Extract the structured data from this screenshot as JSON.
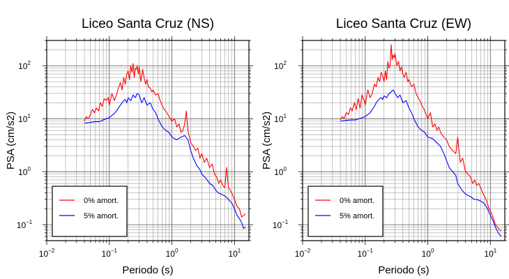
{
  "chart_data": [
    {
      "type": "line",
      "title": "Liceo Santa Cruz (NS)",
      "xlabel": "Periodo (s)",
      "ylabel": "PSA (cm/s2)",
      "xscale": "log",
      "yscale": "log",
      "xlim": [
        0.01,
        17
      ],
      "ylim": [
        0.05,
        300
      ],
      "xticks": [
        {
          "base": "10",
          "exp": "−2"
        },
        {
          "base": "10",
          "exp": "−1"
        },
        {
          "base": "10",
          "exp": "0"
        },
        {
          "base": "10",
          "exp": "1"
        }
      ],
      "yticks": [
        {
          "base": "10",
          "exp": "−1"
        },
        {
          "base": "10",
          "exp": "0"
        },
        {
          "base": "10",
          "exp": "1"
        },
        {
          "base": "10",
          "exp": "2"
        }
      ],
      "grid": true,
      "legend_position": "bottom-left",
      "series": [
        {
          "name": "0% amort.",
          "color": "#ff0000",
          "x": [
            0.04,
            0.043,
            0.046,
            0.05,
            0.054,
            0.058,
            0.062,
            0.067,
            0.072,
            0.077,
            0.083,
            0.089,
            0.096,
            0.1,
            0.11,
            0.12,
            0.13,
            0.14,
            0.15,
            0.16,
            0.17,
            0.18,
            0.19,
            0.2,
            0.21,
            0.22,
            0.23,
            0.24,
            0.25,
            0.26,
            0.27,
            0.28,
            0.29,
            0.3,
            0.32,
            0.34,
            0.36,
            0.38,
            0.4,
            0.42,
            0.45,
            0.48,
            0.5,
            0.55,
            0.6,
            0.65,
            0.7,
            0.75,
            0.8,
            0.9,
            1.0,
            1.1,
            1.2,
            1.3,
            1.4,
            1.5,
            1.6,
            1.7,
            1.8,
            2.0,
            2.2,
            2.4,
            2.6,
            2.8,
            3.0,
            3.3,
            3.6,
            4.0,
            4.4,
            4.8,
            5.2,
            5.6,
            6.0,
            6.5,
            7.0,
            7.5,
            8.0,
            8.5,
            9.0,
            9.5,
            10.0,
            11.0,
            12.0,
            13.0,
            14.0,
            15.0
          ],
          "y": [
            9.0,
            11,
            10,
            12,
            15,
            13,
            16,
            14,
            20,
            17,
            24,
            22,
            25,
            18,
            30,
            22,
            28,
            38,
            48,
            35,
            60,
            45,
            70,
            80,
            55,
            100,
            75,
            110,
            60,
            90,
            85,
            100,
            70,
            95,
            50,
            85,
            60,
            45,
            55,
            40,
            38,
            32,
            35,
            28,
            30,
            22,
            18,
            15,
            14,
            11,
            9,
            10,
            7,
            8,
            5.5,
            6,
            8,
            14,
            6,
            3.5,
            3.0,
            2.5,
            2.8,
            1.8,
            2.2,
            1.5,
            1.8,
            1.2,
            1.4,
            0.9,
            0.8,
            0.6,
            0.7,
            0.55,
            0.5,
            1.2,
            0.5,
            0.45,
            0.4,
            0.35,
            0.3,
            0.22,
            0.2,
            0.14,
            0.15,
            0.16
          ]
        },
        {
          "name": "5% amort.",
          "color": "#0000ff",
          "x": [
            0.04,
            0.05,
            0.06,
            0.07,
            0.08,
            0.09,
            0.1,
            0.11,
            0.12,
            0.13,
            0.14,
            0.15,
            0.16,
            0.17,
            0.18,
            0.19,
            0.2,
            0.22,
            0.24,
            0.26,
            0.28,
            0.3,
            0.33,
            0.36,
            0.4,
            0.45,
            0.5,
            0.55,
            0.6,
            0.7,
            0.8,
            0.9,
            1.0,
            1.1,
            1.2,
            1.4,
            1.6,
            1.8,
            2.0,
            2.2,
            2.5,
            2.8,
            3.0,
            3.5,
            4.0,
            4.5,
            5.0,
            5.5,
            6.0,
            7.0,
            8.0,
            9.0,
            10.0,
            11.0,
            12.0,
            13.0,
            14.0,
            15.0
          ],
          "y": [
            8.3,
            8.5,
            8.8,
            8.8,
            9.5,
            10.0,
            10.5,
            11.5,
            12.5,
            14,
            16,
            18,
            20,
            22,
            23,
            20,
            25,
            22,
            28,
            25,
            30,
            28,
            20,
            25,
            18,
            20,
            15,
            13,
            10,
            7,
            6,
            5.5,
            4.5,
            4.2,
            4.0,
            4.5,
            4.8,
            4.0,
            2.5,
            1.8,
            1.3,
            1.1,
            0.9,
            0.75,
            0.6,
            0.55,
            0.45,
            0.4,
            0.38,
            0.35,
            0.3,
            0.26,
            0.2,
            0.15,
            0.13,
            0.11,
            0.085,
            0.09
          ]
        }
      ]
    },
    {
      "type": "line",
      "title": "Liceo Santa Cruz (EW)",
      "xlabel": "Periodo (s)",
      "ylabel": "PSA (cm/s2)",
      "xscale": "log",
      "yscale": "log",
      "xlim": [
        0.01,
        17
      ],
      "ylim": [
        0.05,
        300
      ],
      "xticks": [
        {
          "base": "10",
          "exp": "−2"
        },
        {
          "base": "10",
          "exp": "−1"
        },
        {
          "base": "10",
          "exp": "0"
        },
        {
          "base": "10",
          "exp": "1"
        }
      ],
      "yticks": [
        {
          "base": "10",
          "exp": "−1"
        },
        {
          "base": "10",
          "exp": "0"
        },
        {
          "base": "10",
          "exp": "1"
        },
        {
          "base": "10",
          "exp": "2"
        }
      ],
      "grid": true,
      "legend_position": "bottom-left",
      "series": [
        {
          "name": "0% amort.",
          "color": "#ff0000",
          "x": [
            0.04,
            0.043,
            0.046,
            0.05,
            0.054,
            0.058,
            0.062,
            0.067,
            0.072,
            0.077,
            0.083,
            0.089,
            0.096,
            0.1,
            0.11,
            0.12,
            0.13,
            0.14,
            0.15,
            0.16,
            0.17,
            0.18,
            0.19,
            0.2,
            0.21,
            0.22,
            0.23,
            0.24,
            0.25,
            0.26,
            0.27,
            0.28,
            0.29,
            0.3,
            0.32,
            0.34,
            0.36,
            0.38,
            0.4,
            0.42,
            0.45,
            0.48,
            0.5,
            0.55,
            0.6,
            0.65,
            0.7,
            0.75,
            0.8,
            0.9,
            1.0,
            1.1,
            1.2,
            1.3,
            1.4,
            1.5,
            1.6,
            1.8,
            2.0,
            2.2,
            2.5,
            2.8,
            3.0,
            3.3,
            3.6,
            4.0,
            4.4,
            4.8,
            5.2,
            5.6,
            6.0,
            6.5,
            7.0,
            7.5,
            8.0,
            8.5,
            9.0,
            9.5,
            10.0,
            11.0,
            12.0,
            13.0,
            14.0,
            15.0
          ],
          "y": [
            9.5,
            11,
            10,
            13,
            12,
            16,
            14,
            20,
            15,
            24,
            16,
            28,
            22,
            18,
            35,
            25,
            30,
            45,
            40,
            60,
            50,
            75,
            65,
            50,
            80,
            55,
            120,
            90,
            100,
            250,
            130,
            160,
            140,
            170,
            100,
            120,
            80,
            95,
            70,
            60,
            75,
            50,
            55,
            40,
            45,
            30,
            25,
            22,
            18,
            14,
            10,
            13,
            7,
            8,
            6,
            7,
            5.5,
            4.5,
            4.0,
            3.0,
            2.5,
            2.2,
            4.5,
            1.5,
            1.8,
            1.0,
            0.9,
            0.8,
            0.6,
            0.7,
            0.55,
            0.6,
            0.5,
            0.4,
            0.35,
            0.3,
            0.25,
            0.2,
            0.18,
            0.14,
            0.1,
            0.09,
            0.08,
            0.075
          ]
        },
        {
          "name": "5% amort.",
          "color": "#0000ff",
          "x": [
            0.04,
            0.05,
            0.06,
            0.07,
            0.08,
            0.09,
            0.1,
            0.11,
            0.12,
            0.13,
            0.14,
            0.15,
            0.16,
            0.17,
            0.18,
            0.19,
            0.2,
            0.22,
            0.24,
            0.26,
            0.28,
            0.3,
            0.33,
            0.36,
            0.4,
            0.45,
            0.5,
            0.55,
            0.6,
            0.7,
            0.8,
            0.9,
            1.0,
            1.2,
            1.4,
            1.6,
            1.8,
            2.0,
            2.2,
            2.5,
            2.8,
            3.0,
            3.5,
            4.0,
            4.5,
            5.0,
            5.5,
            6.0,
            7.0,
            8.0,
            9.0,
            10.0,
            11.0,
            12.0,
            13.0,
            14.0,
            15.0
          ],
          "y": [
            9.0,
            9.3,
            9.5,
            9.5,
            10.0,
            10.5,
            11,
            12,
            13,
            15,
            17,
            20,
            22,
            24,
            25,
            23,
            27,
            25,
            30,
            32,
            35,
            30,
            25,
            28,
            20,
            22,
            16,
            13,
            10,
            7,
            6,
            5.5,
            4.5,
            4.2,
            3.5,
            3.0,
            2.2,
            1.6,
            1.2,
            1.0,
            0.85,
            0.6,
            0.45,
            0.38,
            0.35,
            0.33,
            0.3,
            0.3,
            0.28,
            0.25,
            0.2,
            0.15,
            0.12,
            0.09,
            0.075,
            0.065,
            0.06
          ]
        }
      ]
    }
  ]
}
